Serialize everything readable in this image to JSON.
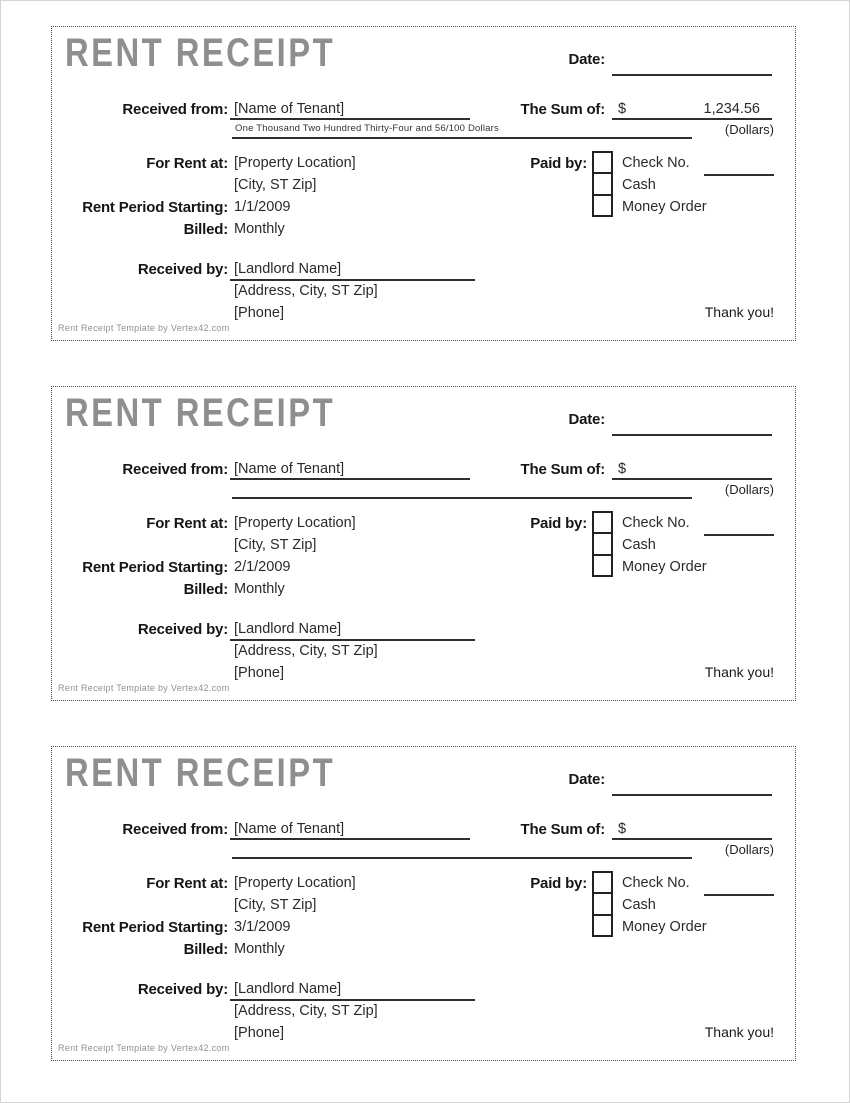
{
  "labels": {
    "title": "RENT RECEIPT",
    "date": "Date:",
    "received_from": "Received from:",
    "sum_of": "The Sum of:",
    "currency": "$",
    "dollars": "(Dollars)",
    "for_rent_at": "For Rent at:",
    "rent_period_starting": "Rent Period Starting:",
    "billed": "Billed:",
    "paid_by": "Paid by:",
    "received_by": "Received by:",
    "thank_you": "Thank you!",
    "footer": "Rent Receipt Template by Vertex42.com"
  },
  "paid_by_options": [
    {
      "label": "Check No.",
      "checked": false
    },
    {
      "label": "Cash",
      "checked": false
    },
    {
      "label": "Money Order",
      "checked": false
    }
  ],
  "receipts": [
    {
      "tenant": "[Name of Tenant]",
      "amount": "1,234.56",
      "amount_in_words": "One Thousand Two Hundred Thirty-Four and 56/100 Dollars",
      "property": "[Property Location]",
      "city_st_zip": "[City, ST  Zip]",
      "rent_period_starting": "1/1/2009",
      "billed": "Monthly",
      "landlord": "[Landlord Name]",
      "landlord_address": "[Address, City, ST  Zip]",
      "landlord_phone": "[Phone]"
    },
    {
      "tenant": "[Name of Tenant]",
      "amount": "",
      "amount_in_words": "",
      "property": "[Property Location]",
      "city_st_zip": "[City, ST  Zip]",
      "rent_period_starting": "2/1/2009",
      "billed": "Monthly",
      "landlord": "[Landlord Name]",
      "landlord_address": "[Address, City, ST  Zip]",
      "landlord_phone": "[Phone]"
    },
    {
      "tenant": "[Name of Tenant]",
      "amount": "",
      "amount_in_words": "",
      "property": "[Property Location]",
      "city_st_zip": "[City, ST  Zip]",
      "rent_period_starting": "3/1/2009",
      "billed": "Monthly",
      "landlord": "[Landlord Name]",
      "landlord_address": "[Address, City, ST  Zip]",
      "landlord_phone": "[Phone]"
    }
  ],
  "colors": {
    "title_gray": "#8f8f8f",
    "text": "#1a1a1a",
    "footer_gray": "#8e938c",
    "line": "#2e2e2e"
  }
}
